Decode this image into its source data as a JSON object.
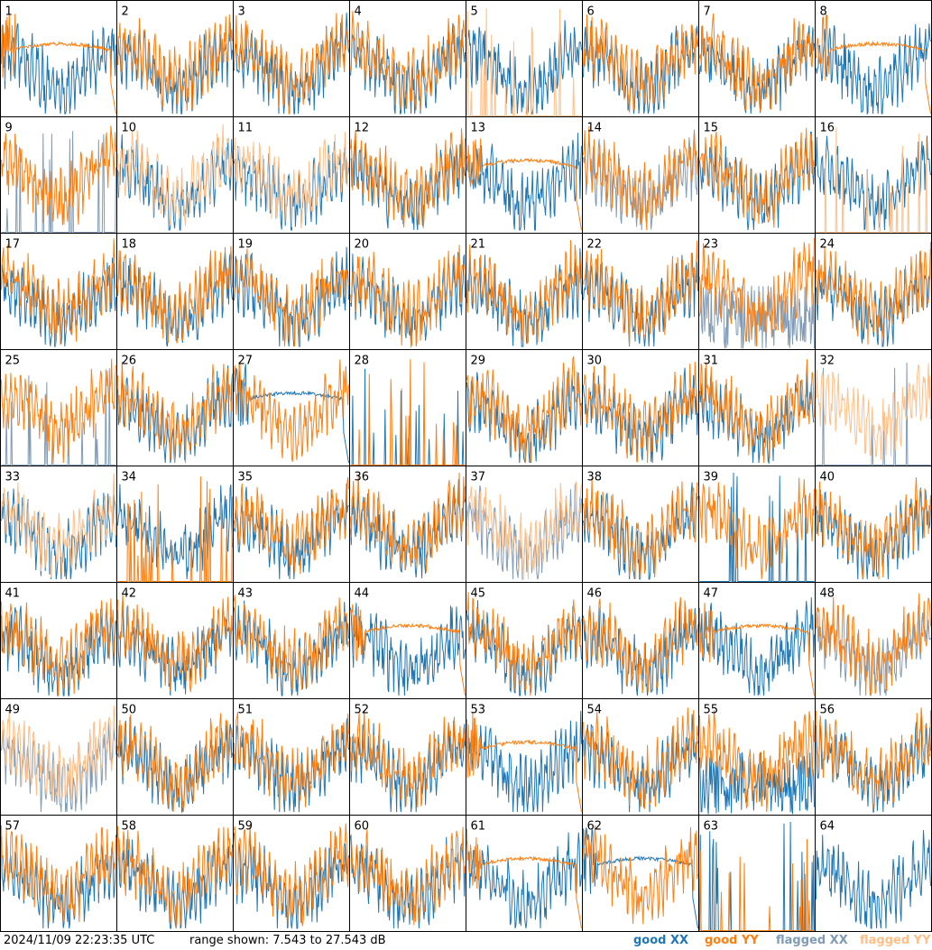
{
  "chart_data": {
    "type": "line",
    "layout": "8x8 small multiples",
    "panel_labels": [
      "1",
      "2",
      "3",
      "4",
      "5",
      "6",
      "7",
      "8",
      "9",
      "10",
      "11",
      "12",
      "13",
      "14",
      "15",
      "16",
      "17",
      "18",
      "19",
      "20",
      "21",
      "22",
      "23",
      "24",
      "25",
      "26",
      "27",
      "28",
      "29",
      "30",
      "31",
      "32",
      "33",
      "34",
      "35",
      "36",
      "37",
      "38",
      "39",
      "40",
      "41",
      "42",
      "43",
      "44",
      "45",
      "46",
      "47",
      "48",
      "49",
      "50",
      "51",
      "52",
      "53",
      "54",
      "55",
      "56",
      "57",
      "58",
      "59",
      "60",
      "61",
      "62",
      "63",
      "64"
    ],
    "ylim": [
      7.543,
      27.543
    ],
    "y_unit": "dB",
    "legend": [
      "good XX",
      "good YY",
      "flagged XX",
      "flagged YY"
    ],
    "panels": {
      "1": {
        "xx": "good",
        "yy": "good",
        "yy_shape": "flat_dropout"
      },
      "5": {
        "xx": "good",
        "yy": "flagged",
        "yy_shape": "spikes"
      },
      "8": {
        "xx": "good",
        "yy": "good",
        "yy_shape": "flat_dropout"
      },
      "9": {
        "xx": "flagged",
        "yy": "good",
        "xx_shape": "spikes"
      },
      "10": {
        "xx": "good",
        "yy": "flagged"
      },
      "11": {
        "xx": "good",
        "yy": "flagged"
      },
      "13": {
        "xx": "good",
        "yy": "good",
        "yy_shape": "flat_dropout"
      },
      "14": {
        "xx": "flagged",
        "yy": "good"
      },
      "16": {
        "xx": "good",
        "yy": "flagged",
        "yy_shape": "spikes"
      },
      "23": {
        "xx": "flagged",
        "yy": "good",
        "xx_shape": "noisy_low"
      },
      "25": {
        "xx": "flagged",
        "yy": "good",
        "xx_shape": "spikes"
      },
      "27": {
        "xx": "good",
        "yy": "good",
        "xx_shape": "flat_dropout"
      },
      "28": {
        "xx": "good",
        "yy": "good",
        "xx_shape": "spikes",
        "yy_shape": "spikes"
      },
      "32": {
        "xx": "flagged",
        "yy": "flagged",
        "xx_shape": "spikes"
      },
      "33": {
        "xx": "good",
        "yy": "flagged"
      },
      "34": {
        "xx": "good",
        "yy": "good",
        "yy_shape": "spikes"
      },
      "37": {
        "xx": "flagged",
        "yy": "flagged"
      },
      "39": {
        "xx": "good",
        "yy": "good",
        "xx_shape": "spikes"
      },
      "44": {
        "xx": "good",
        "yy": "good",
        "yy_shape": "flat_dropout"
      },
      "47": {
        "xx": "good",
        "yy": "good",
        "yy_shape": "flat_dropout"
      },
      "48": {
        "xx": "flagged",
        "yy": "good"
      },
      "49": {
        "xx": "flagged",
        "yy": "flagged"
      },
      "53": {
        "xx": "good",
        "yy": "good",
        "yy_shape": "flat_dropout"
      },
      "55": {
        "xx": "good",
        "yy": "good",
        "xx_shape": "noisy_low"
      },
      "61": {
        "xx": "good",
        "yy": "good",
        "yy_shape": "flat_dropout"
      },
      "62": {
        "xx": "good",
        "yy": "good",
        "xx_shape": "flat_dropout"
      },
      "63": {
        "xx": "good",
        "yy": "good",
        "xx_shape": "spikes",
        "yy_shape": "spikes"
      },
      "64": {
        "xx": "good",
        "yy": "none"
      }
    },
    "grid": false
  },
  "footer": {
    "timestamp": "2024/11/09 22:23:35 UTC",
    "range_text": "range shown: 7.543 to 27.543 dB"
  },
  "legend_labels": {
    "good_xx": "good XX",
    "good_yy": "good YY",
    "flagged_xx": "flagged XX",
    "flagged_yy": "flagged YY"
  },
  "colors": {
    "good_xx": "#1f77b4",
    "good_yy": "#ff7f0e",
    "flagged_xx": "#7f9bb5",
    "flagged_yy": "#ffbf86"
  }
}
